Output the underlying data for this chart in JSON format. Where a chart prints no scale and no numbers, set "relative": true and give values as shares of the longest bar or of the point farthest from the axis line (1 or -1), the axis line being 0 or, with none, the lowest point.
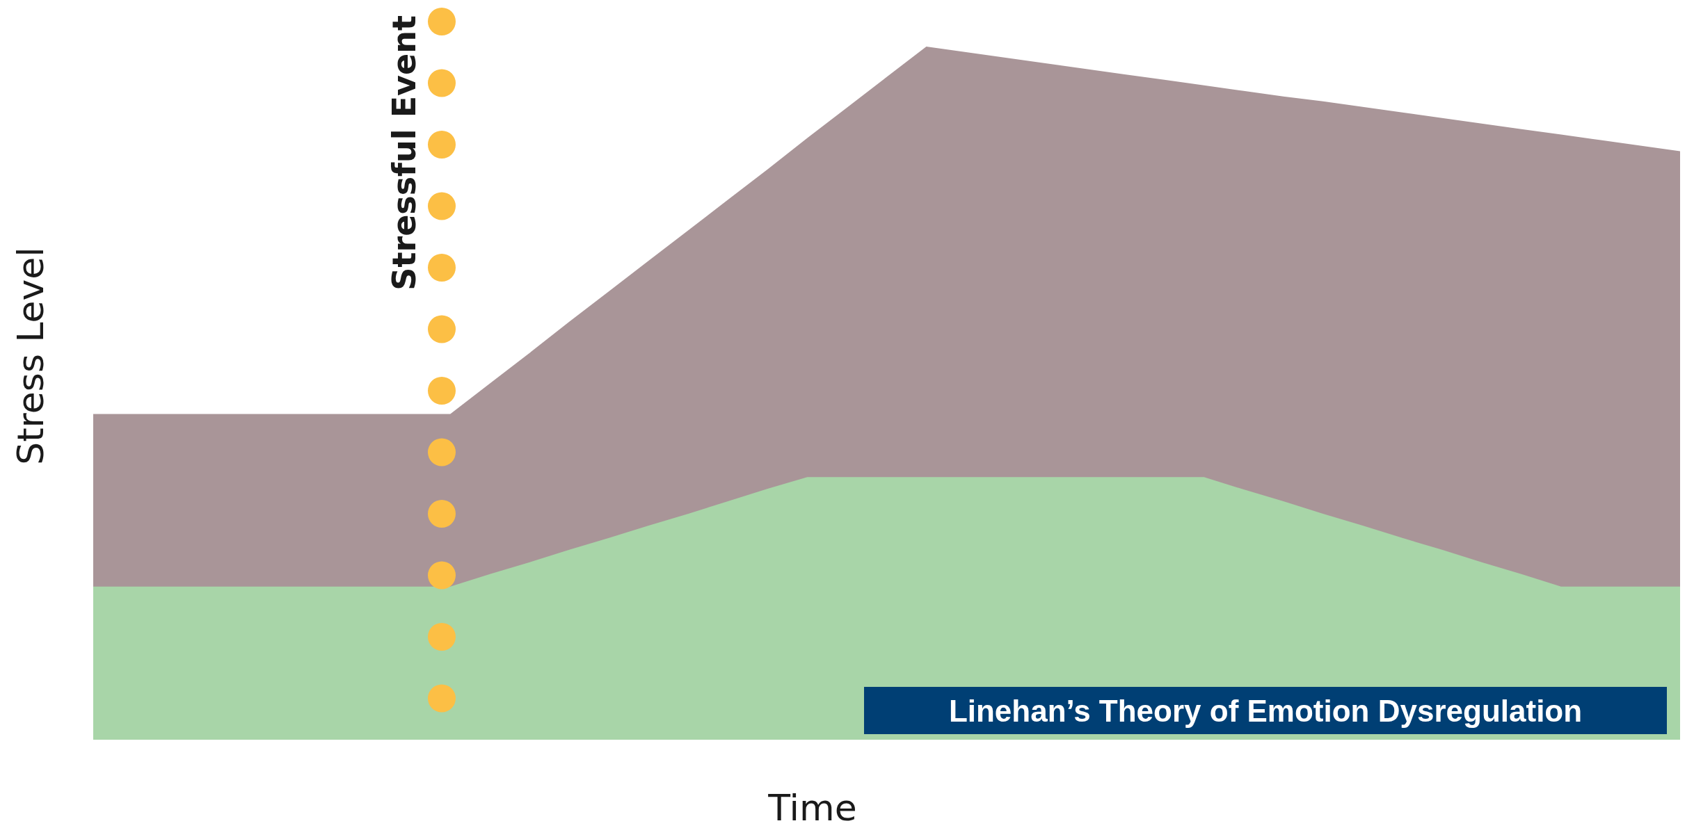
{
  "chart_data": {
    "type": "area",
    "relative": true,
    "xlabel": "Time",
    "ylabel": "Stress Level",
    "categories": [
      null,
      null,
      null,
      null,
      null,
      null,
      null,
      null,
      null,
      null,
      null,
      null,
      null,
      null,
      null,
      null,
      null,
      null,
      null,
      null,
      null,
      null,
      null,
      null,
      null,
      null,
      null,
      null,
      null,
      null,
      null,
      null,
      null,
      null,
      null,
      null,
      null,
      null,
      null,
      null,
      null
    ],
    "series": [
      {
        "color": "#a99598",
        "values": [
          0.47,
          0.47,
          0.47,
          0.47,
          0.47,
          0.47,
          0.47,
          0.47,
          0.47,
          0.47,
          0.514,
          0.558,
          0.603,
          0.647,
          0.691,
          0.735,
          0.779,
          0.823,
          0.868,
          0.912,
          0.956,
          1,
          0.992,
          0.984,
          0.976,
          0.968,
          0.96,
          0.952,
          0.944,
          0.936,
          0.928,
          0.921,
          0.913,
          0.905,
          0.897,
          0.889,
          0.881,
          0.873,
          0.865,
          0.857,
          0.849
        ]
      },
      {
        "color": "#a8d5a8",
        "values": [
          0.221,
          0.221,
          0.221,
          0.221,
          0.221,
          0.221,
          0.221,
          0.221,
          0.221,
          0.221,
          0.239,
          0.256,
          0.274,
          0.291,
          0.309,
          0.326,
          0.344,
          0.362,
          0.379,
          0.379,
          0.379,
          0.379,
          0.379,
          0.379,
          0.379,
          0.379,
          0.379,
          0.379,
          0.379,
          0.361,
          0.344,
          0.326,
          0.309,
          0.291,
          0.274,
          0.256,
          0.239,
          0.221,
          0.221,
          0.221,
          0.221
        ]
      }
    ],
    "annotations": [
      "Stressful Event",
      "Linehan’s Theory of Emotion Dysregulation"
    ]
  }
}
